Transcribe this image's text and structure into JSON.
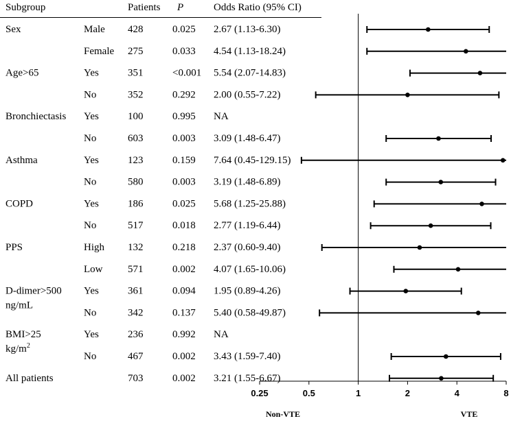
{
  "chart_data": {
    "type": "forest",
    "title": "",
    "headers": {
      "subgroup": "Subgroup",
      "patients": "Patients",
      "p": "P",
      "or": "Odds Ratio (95% CI)"
    },
    "xscale": "log2",
    "xlim": [
      0.25,
      8
    ],
    "ticks": [
      0.25,
      0.5,
      1,
      2,
      4,
      8
    ],
    "tick_labels": [
      "0.25",
      "0.5",
      "1",
      "2",
      "4",
      "8"
    ],
    "reference_line": 1,
    "side_labels": {
      "left": "Non-VTE",
      "right": "VTE"
    },
    "rows": [
      {
        "group": "Sex",
        "level": "Male",
        "patients": "428",
        "p": "0.025",
        "or_text": "2.67 (1.13-6.30)",
        "or": 2.67,
        "lo": 1.13,
        "hi": 6.3
      },
      {
        "group": "",
        "level": "Female",
        "patients": "275",
        "p": "0.033",
        "or_text": "4.54 (1.13-18.24)",
        "or": 4.54,
        "lo": 1.13,
        "hi": 18.24
      },
      {
        "group": "Age>65",
        "level": "Yes",
        "patients": "351",
        "p": "<0.001",
        "or_text": "5.54 (2.07-14.83)",
        "or": 5.54,
        "lo": 2.07,
        "hi": 14.83
      },
      {
        "group": "",
        "level": "No",
        "patients": "352",
        "p": "0.292",
        "or_text": "2.00 (0.55-7.22)",
        "or": 2.0,
        "lo": 0.55,
        "hi": 7.22
      },
      {
        "group": "Bronchiectasis",
        "level": "Yes",
        "patients": "100",
        "p": "0.995",
        "or_text": "NA",
        "or": null,
        "lo": null,
        "hi": null
      },
      {
        "group": "",
        "level": "No",
        "patients": "603",
        "p": "0.003",
        "or_text": "3.09 (1.48-6.47)",
        "or": 3.09,
        "lo": 1.48,
        "hi": 6.47
      },
      {
        "group": "Asthma",
        "level": "Yes",
        "patients": "123",
        "p": "0.159",
        "or_text": "7.64 (0.45-129.15)",
        "or": 7.64,
        "lo": 0.45,
        "hi": 129.15
      },
      {
        "group": "",
        "level": "No",
        "patients": "580",
        "p": "0.003",
        "or_text": "3.19 (1.48-6.89)",
        "or": 3.19,
        "lo": 1.48,
        "hi": 6.89
      },
      {
        "group": "COPD",
        "level": "Yes",
        "patients": "186",
        "p": "0.025",
        "or_text": "5.68 (1.25-25.88)",
        "or": 5.68,
        "lo": 1.25,
        "hi": 25.88
      },
      {
        "group": "",
        "level": "No",
        "patients": "517",
        "p": "0.018",
        "or_text": "2.77 (1.19-6.44)",
        "or": 2.77,
        "lo": 1.19,
        "hi": 6.44
      },
      {
        "group": "PPS",
        "level": "High",
        "patients": "132",
        "p": "0.218",
        "or_text": "2.37 (0.60-9.40)",
        "or": 2.37,
        "lo": 0.6,
        "hi": 9.4
      },
      {
        "group": "",
        "level": "Low",
        "patients": "571",
        "p": "0.002",
        "or_text": "4.07 (1.65-10.06)",
        "or": 4.07,
        "lo": 1.65,
        "hi": 10.06
      },
      {
        "group": "D-dimer>500",
        "group2": "ng/mL",
        "level": "Yes",
        "patients": "361",
        "p": "0.094",
        "or_text": "1.95 (0.89-4.26)",
        "or": 1.95,
        "lo": 0.89,
        "hi": 4.26
      },
      {
        "group": "",
        "level": "No",
        "patients": "342",
        "p": "0.137",
        "or_text": "5.40 (0.58-49.87)",
        "or": 5.4,
        "lo": 0.58,
        "hi": 49.87
      },
      {
        "group": "BMI>25",
        "group2": "kg/m",
        "group2_sup": "2",
        "level": "Yes",
        "patients": "236",
        "p": "0.992",
        "or_text": "NA",
        "or": null,
        "lo": null,
        "hi": null
      },
      {
        "group": "",
        "level": "No",
        "patients": "467",
        "p": "0.002",
        "or_text": "3.43 (1.59-7.40)",
        "or": 3.43,
        "lo": 1.59,
        "hi": 7.4
      },
      {
        "group": "All patients",
        "level": "",
        "patients": "703",
        "p": "0.002",
        "or_text": "3.21 (1.55-6.67)",
        "or": 3.21,
        "lo": 1.55,
        "hi": 6.67
      }
    ]
  }
}
